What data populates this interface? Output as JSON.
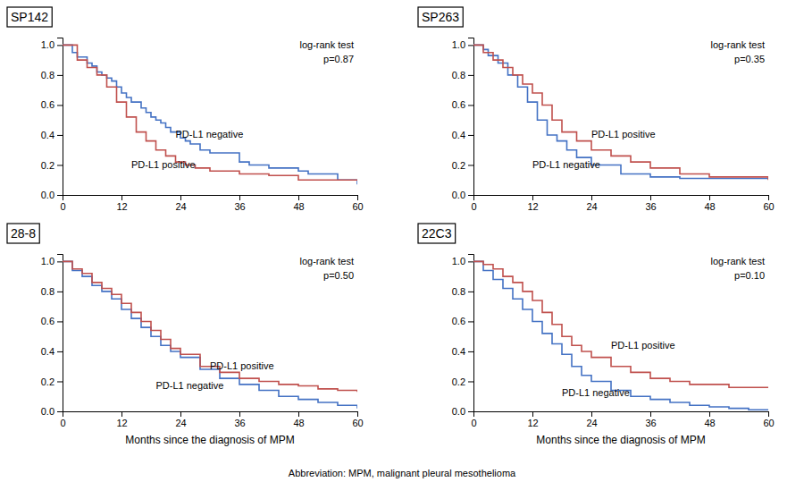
{
  "chart_data": [
    {
      "type": "step",
      "title": "SP142",
      "xlim": [
        0,
        60
      ],
      "xticks": [
        0,
        12,
        24,
        36,
        48,
        60
      ],
      "ylim": [
        0.0,
        1.05
      ],
      "yticks": [
        {
          "value": 0.0,
          "label": "0.0"
        },
        0.2,
        0.4,
        0.6,
        0.8,
        {
          "value": 1.0,
          "label": "1.0"
        }
      ],
      "grid": false,
      "annotations": [
        {
          "text": "log-rank test"
        },
        {
          "text": "p=0.87"
        },
        {
          "text": "PD-L1 negative",
          "x": 23,
          "y": 0.38
        },
        {
          "text": "PD-L1 positive",
          "x": 14,
          "y": 0.18
        }
      ],
      "series": [
        {
          "color": "#4472C4",
          "x": [
            0,
            2,
            3,
            5,
            6,
            7,
            8,
            9,
            10,
            11,
            12,
            13,
            14,
            16,
            17,
            18,
            19,
            20,
            21,
            22,
            24,
            25,
            26,
            28,
            30,
            36,
            38,
            42,
            48,
            50,
            56,
            60
          ],
          "values": [
            1.0,
            0.95,
            0.92,
            0.88,
            0.86,
            0.82,
            0.8,
            0.78,
            0.76,
            0.72,
            0.68,
            0.65,
            0.62,
            0.58,
            0.55,
            0.52,
            0.5,
            0.48,
            0.45,
            0.42,
            0.38,
            0.36,
            0.34,
            0.3,
            0.28,
            0.22,
            0.2,
            0.18,
            0.16,
            0.14,
            0.1,
            0.07
          ]
        },
        {
          "color": "#C0504D",
          "x": [
            0,
            3,
            5,
            7,
            9,
            11,
            13,
            15,
            17,
            19,
            21,
            23,
            25,
            27,
            30,
            36,
            42,
            48,
            54,
            60
          ],
          "values": [
            1.0,
            0.9,
            0.85,
            0.8,
            0.72,
            0.62,
            0.52,
            0.42,
            0.36,
            0.3,
            0.26,
            0.22,
            0.2,
            0.18,
            0.16,
            0.14,
            0.13,
            0.1,
            0.1,
            0.1
          ]
        }
      ]
    },
    {
      "type": "step",
      "title": "SP263",
      "xlim": [
        0,
        60
      ],
      "xticks": [
        0,
        12,
        24,
        36,
        48,
        60
      ],
      "ylim": [
        0.0,
        1.05
      ],
      "yticks": [
        {
          "value": 0.0,
          "label": "0.0"
        },
        0.2,
        0.4,
        0.6,
        0.8,
        {
          "value": 1.0,
          "label": "1.0"
        }
      ],
      "grid": false,
      "annotations": [
        {
          "text": "log-rank test"
        },
        {
          "text": "p=0.35"
        },
        {
          "text": "PD-L1 negative",
          "x": 12,
          "y": 0.18
        },
        {
          "text": "PD-L1 positive",
          "x": 24,
          "y": 0.38
        }
      ],
      "series": [
        {
          "color": "#4472C4",
          "x": [
            0,
            2,
            3,
            5,
            7,
            9,
            11,
            13,
            15,
            17,
            19,
            21,
            24,
            30,
            36,
            42,
            48,
            60
          ],
          "values": [
            1.0,
            0.97,
            0.93,
            0.88,
            0.8,
            0.72,
            0.62,
            0.5,
            0.4,
            0.36,
            0.3,
            0.25,
            0.2,
            0.14,
            0.12,
            0.11,
            0.11,
            0.11
          ]
        },
        {
          "color": "#C0504D",
          "x": [
            0,
            2,
            4,
            6,
            8,
            10,
            12,
            14,
            16,
            18,
            21,
            24,
            28,
            32,
            36,
            42,
            48,
            60
          ],
          "values": [
            1.0,
            0.95,
            0.9,
            0.85,
            0.8,
            0.74,
            0.68,
            0.6,
            0.5,
            0.42,
            0.36,
            0.3,
            0.26,
            0.22,
            0.18,
            0.14,
            0.12,
            0.1
          ]
        }
      ]
    },
    {
      "type": "step",
      "title": "28-8",
      "x_label": "Months since the diagnosis of MPM",
      "xlim": [
        0,
        60
      ],
      "xticks": [
        0,
        12,
        24,
        36,
        48,
        60
      ],
      "ylim": [
        0.0,
        1.05
      ],
      "yticks": [
        {
          "value": 0.0,
          "label": "0.0"
        },
        0.2,
        0.4,
        0.6,
        0.8,
        {
          "value": 1.0,
          "label": "1.0"
        }
      ],
      "grid": false,
      "annotations": [
        {
          "text": "log-rank test"
        },
        {
          "text": "p=0.50"
        },
        {
          "text": "PD-L1 negative",
          "x": 19,
          "y": 0.15
        },
        {
          "text": "PD-L1 positive",
          "x": 30,
          "y": 0.28
        }
      ],
      "series": [
        {
          "color": "#4472C4",
          "x": [
            0,
            2,
            4,
            6,
            8,
            10,
            12,
            14,
            16,
            18,
            20,
            22,
            24,
            28,
            32,
            36,
            40,
            44,
            48,
            52,
            56,
            60
          ],
          "values": [
            1.0,
            0.94,
            0.9,
            0.84,
            0.8,
            0.75,
            0.68,
            0.62,
            0.56,
            0.5,
            0.44,
            0.4,
            0.36,
            0.28,
            0.22,
            0.18,
            0.14,
            0.1,
            0.08,
            0.06,
            0.04,
            0.02
          ]
        },
        {
          "color": "#C0504D",
          "x": [
            0,
            2,
            4,
            6,
            8,
            10,
            12,
            14,
            16,
            18,
            20,
            22,
            24,
            28,
            32,
            36,
            40,
            44,
            48,
            52,
            56,
            60
          ],
          "values": [
            1.0,
            0.95,
            0.92,
            0.86,
            0.82,
            0.78,
            0.72,
            0.66,
            0.6,
            0.54,
            0.48,
            0.42,
            0.38,
            0.3,
            0.26,
            0.22,
            0.2,
            0.18,
            0.17,
            0.15,
            0.14,
            0.13
          ]
        }
      ]
    },
    {
      "type": "step",
      "title": "22C3",
      "x_label": "Months since the diagnosis of MPM",
      "xlim": [
        0,
        60
      ],
      "xticks": [
        0,
        12,
        24,
        36,
        48,
        60
      ],
      "ylim": [
        0.0,
        1.05
      ],
      "yticks": [
        {
          "value": 0.0,
          "label": "0.0"
        },
        0.2,
        0.4,
        0.6,
        0.8,
        {
          "value": 1.0,
          "label": "1.0"
        }
      ],
      "grid": false,
      "annotations": [
        {
          "text": "log-rank test"
        },
        {
          "text": "p=0.10"
        },
        {
          "text": "PD-L1 negative",
          "x": 18,
          "y": 0.1
        },
        {
          "text": "PD-L1 positive",
          "x": 28,
          "y": 0.42
        }
      ],
      "series": [
        {
          "color": "#4472C4",
          "x": [
            0,
            2,
            4,
            6,
            8,
            10,
            12,
            14,
            16,
            18,
            20,
            22,
            24,
            28,
            32,
            36,
            40,
            44,
            48,
            52,
            56,
            60
          ],
          "values": [
            1.0,
            0.94,
            0.88,
            0.82,
            0.75,
            0.68,
            0.6,
            0.52,
            0.45,
            0.38,
            0.3,
            0.24,
            0.2,
            0.14,
            0.1,
            0.08,
            0.06,
            0.04,
            0.03,
            0.02,
            0.01,
            0.01
          ]
        },
        {
          "color": "#C0504D",
          "x": [
            0,
            2,
            4,
            6,
            8,
            10,
            12,
            14,
            16,
            18,
            20,
            22,
            24,
            28,
            32,
            36,
            40,
            44,
            48,
            52,
            56,
            60
          ],
          "values": [
            1.0,
            0.98,
            0.95,
            0.9,
            0.86,
            0.8,
            0.74,
            0.66,
            0.58,
            0.5,
            0.44,
            0.4,
            0.36,
            0.3,
            0.26,
            0.22,
            0.2,
            0.18,
            0.18,
            0.16,
            0.16,
            0.16
          ]
        }
      ]
    }
  ],
  "footnote": "Abbreviation:  MPM, malignant pleural mesothelioma"
}
